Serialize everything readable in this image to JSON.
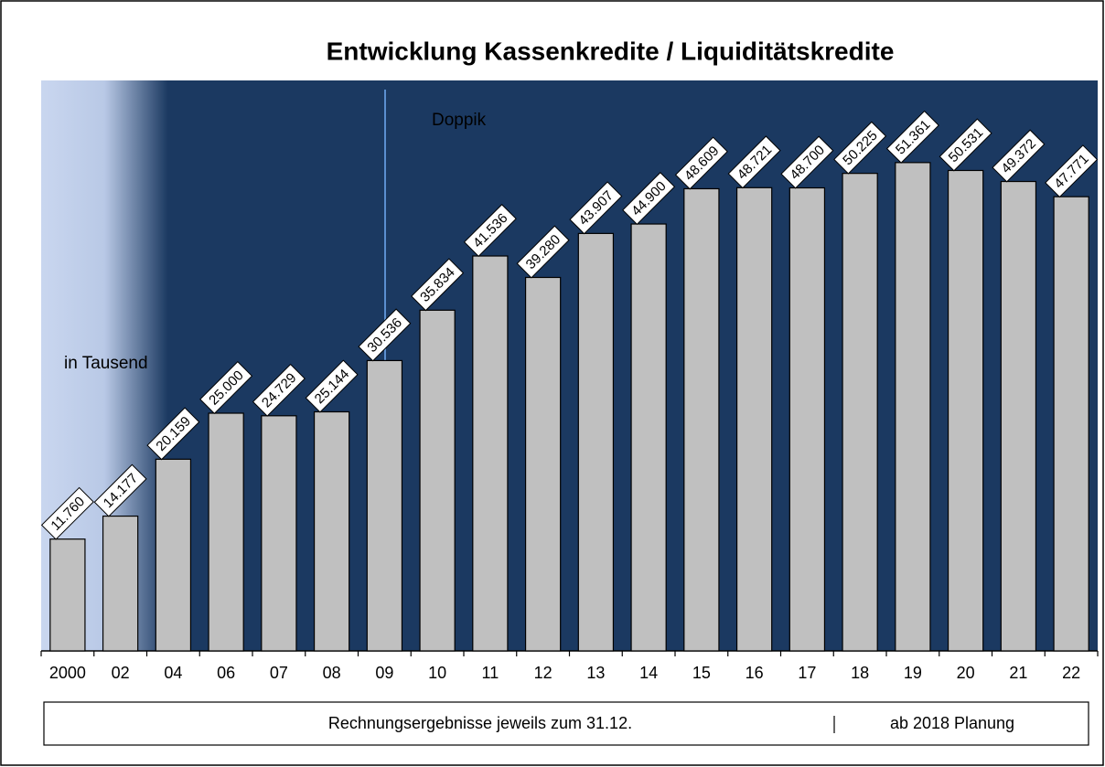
{
  "chart_data": {
    "type": "bar",
    "title": "Entwicklung Kassenkredite / Liquiditätskredite",
    "annotations": [
      "Doppik",
      "in Tausend"
    ],
    "footer": [
      "Rechnungsergebnisse  jeweils zum 31.12.",
      "ab 2018 Planung"
    ],
    "categories": [
      "2000",
      "02",
      "04",
      "06",
      "07",
      "08",
      "09",
      "10",
      "11",
      "12",
      "13",
      "14",
      "15",
      "16",
      "17",
      "18",
      "19",
      "20",
      "21",
      "22"
    ],
    "values": [
      11760,
      14177,
      20159,
      25000,
      24729,
      25144,
      30536,
      35834,
      41536,
      39280,
      43907,
      44900,
      48609,
      48721,
      48700,
      50225,
      51361,
      50531,
      49372,
      47771
    ],
    "value_labels": [
      "11.760",
      "14.177",
      "20.159",
      "25.000",
      "24.729",
      "25.144",
      "30.536",
      "35.834",
      "41.536",
      "39.280",
      "43.907",
      "44.900",
      "48.609",
      "48.721",
      "48.700",
      "50.225",
      "51.361",
      "50.531",
      "49.372",
      "47.771"
    ],
    "color": "#c0c0c0",
    "ylim": [
      0,
      60000
    ]
  }
}
